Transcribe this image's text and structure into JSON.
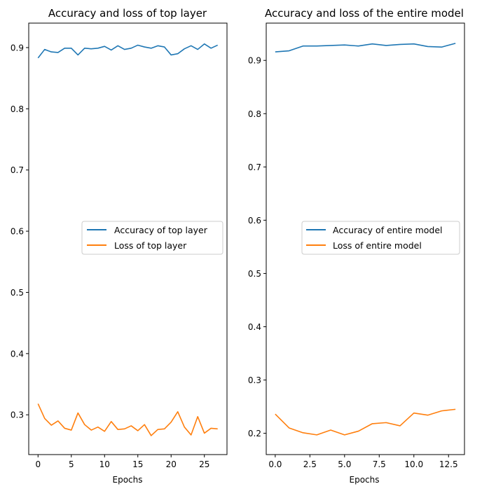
{
  "colors": {
    "series_1": "#1f77b4",
    "series_2": "#ff7f0e"
  },
  "chart_data": [
    {
      "type": "line",
      "title": "Accuracy and loss of top layer",
      "xlabel": "Epochs",
      "ylabel": "",
      "xlim": [
        -1.4,
        28.4
      ],
      "ylim": [
        0.235,
        0.94
      ],
      "xticks": [
        0,
        5,
        10,
        15,
        20,
        25
      ],
      "yticks": [
        0.3,
        0.4,
        0.5,
        0.6,
        0.7,
        0.8,
        0.9
      ],
      "legend_position": "center-right",
      "x": [
        0,
        1,
        2,
        3,
        4,
        5,
        6,
        7,
        8,
        9,
        10,
        11,
        12,
        13,
        14,
        15,
        16,
        17,
        18,
        19,
        20,
        21,
        22,
        23,
        24,
        25,
        26,
        27
      ],
      "series": [
        {
          "name": "Accuracy of top layer",
          "values": [
            0.883,
            0.897,
            0.893,
            0.892,
            0.899,
            0.899,
            0.888,
            0.899,
            0.898,
            0.899,
            0.902,
            0.896,
            0.903,
            0.897,
            0.899,
            0.904,
            0.901,
            0.899,
            0.903,
            0.901,
            0.888,
            0.89,
            0.898,
            0.903,
            0.897,
            0.906,
            0.899,
            0.904
          ]
        },
        {
          "name": "Loss of top layer",
          "values": [
            0.318,
            0.294,
            0.283,
            0.29,
            0.278,
            0.275,
            0.303,
            0.284,
            0.275,
            0.28,
            0.273,
            0.289,
            0.276,
            0.277,
            0.282,
            0.274,
            0.284,
            0.266,
            0.276,
            0.277,
            0.288,
            0.305,
            0.28,
            0.267,
            0.297,
            0.27,
            0.278,
            0.277
          ]
        }
      ]
    },
    {
      "type": "line",
      "title": "Accuracy and loss of the entire model",
      "xlabel": "Epochs",
      "ylabel": "",
      "xlim": [
        -0.65,
        13.65
      ],
      "ylim": [
        0.16,
        0.97
      ],
      "xticks": [
        "0.0",
        "2.5",
        "5.0",
        "7.5",
        "10.0",
        "12.5"
      ],
      "yticks": [
        0.2,
        0.3,
        0.4,
        0.5,
        0.6,
        0.7,
        0.8,
        0.9
      ],
      "legend_position": "center-right",
      "x": [
        0,
        1,
        2,
        3,
        4,
        5,
        6,
        7,
        8,
        9,
        10,
        11,
        12,
        13
      ],
      "series": [
        {
          "name": "Accuracy of entire model",
          "values": [
            0.916,
            0.918,
            0.927,
            0.927,
            0.928,
            0.929,
            0.927,
            0.931,
            0.928,
            0.93,
            0.931,
            0.926,
            0.925,
            0.932
          ]
        },
        {
          "name": "Loss of entire model",
          "values": [
            0.236,
            0.21,
            0.201,
            0.197,
            0.206,
            0.197,
            0.204,
            0.218,
            0.22,
            0.214,
            0.238,
            0.234,
            0.242,
            0.245
          ]
        }
      ]
    }
  ]
}
